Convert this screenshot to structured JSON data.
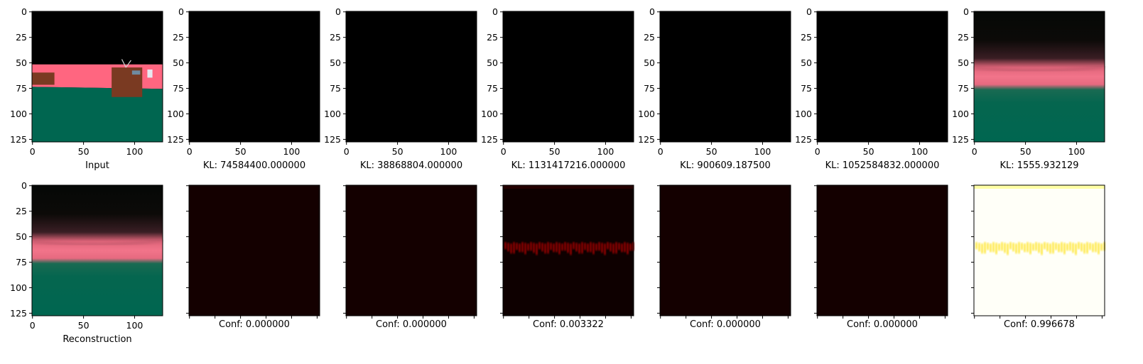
{
  "chart_data": {
    "type": "heatmap",
    "panel_extent": [
      0,
      128
    ],
    "top_ticks": [
      "0",
      "25",
      "50",
      "75",
      "100",
      "125"
    ],
    "bottom_x_ticks": [
      "0",
      "50",
      "100"
    ],
    "top_row": [
      {
        "caption": "Input",
        "kind": "input"
      },
      {
        "caption": "KL: 74584400.000000",
        "kind": "black"
      },
      {
        "caption": "KL: 38868804.000000",
        "kind": "black"
      },
      {
        "caption": "KL: 1131417216.000000",
        "kind": "black"
      },
      {
        "caption": "KL: 900609.187500",
        "kind": "black"
      },
      {
        "caption": "KL: 1052584832.000000",
        "kind": "black"
      },
      {
        "caption": "KL: 1555.932129",
        "kind": "recon"
      }
    ],
    "bottom_row": [
      {
        "caption": "Reconstruction",
        "kind": "recon",
        "conf": null
      },
      {
        "caption": "Conf: 0.000000",
        "kind": "conf",
        "conf": 0.0
      },
      {
        "caption": "Conf: 0.000000",
        "kind": "conf",
        "conf": 0.0
      },
      {
        "caption": "Conf: 0.003322",
        "kind": "conf",
        "conf": 0.003322
      },
      {
        "caption": "Conf: 0.000000",
        "kind": "conf",
        "conf": 0.0
      },
      {
        "caption": "Conf: 0.000000",
        "kind": "conf",
        "conf": 0.0
      },
      {
        "caption": "Conf: 0.996678",
        "kind": "conf",
        "conf": 0.996678
      }
    ],
    "colors": {
      "sky": "#000000",
      "wall": "#ff6680",
      "floor": "#006650",
      "object": "#7a3a22",
      "conf_low": "#140000",
      "conf_high": "#ffffff"
    }
  }
}
